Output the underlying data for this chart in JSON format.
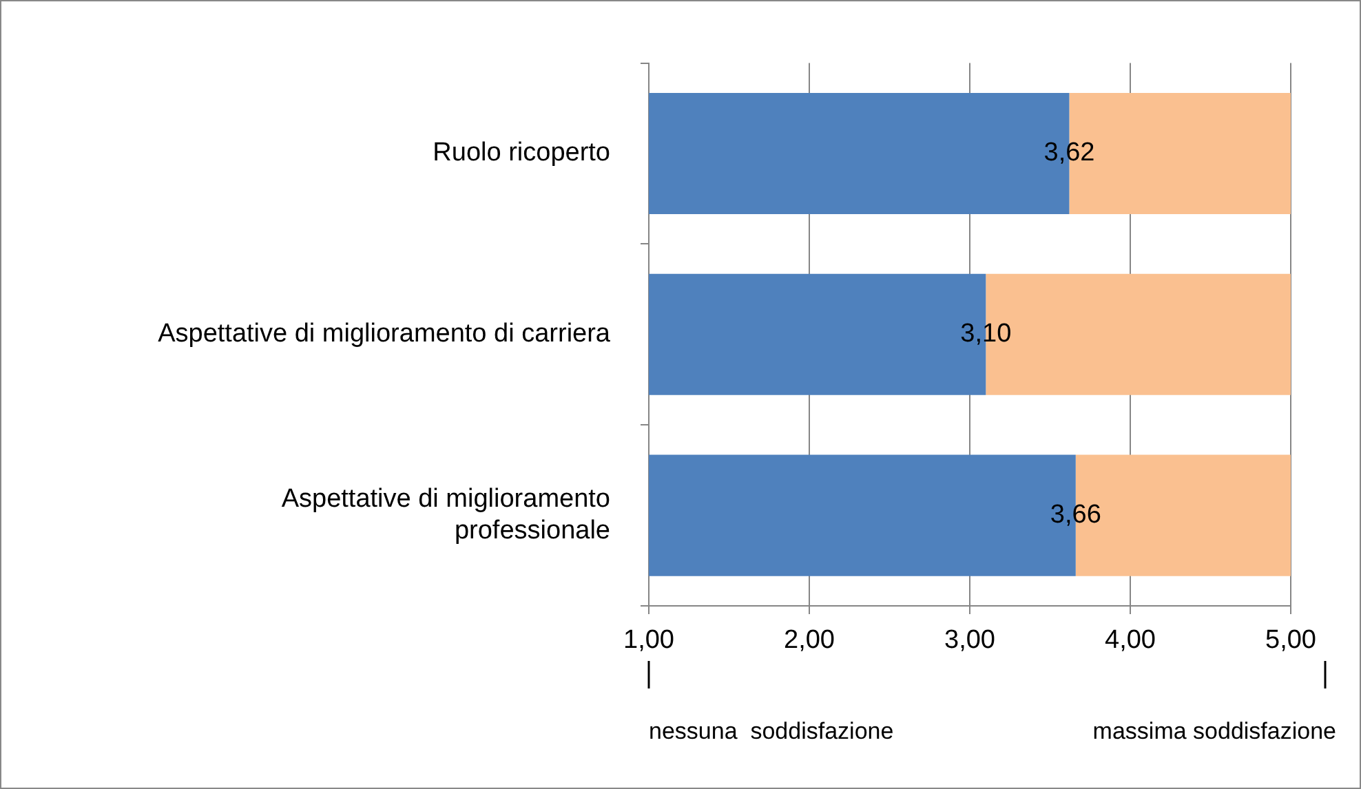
{
  "chart_data": {
    "type": "bar",
    "orientation": "horizontal",
    "stacked": true,
    "categories": [
      "Ruolo ricoperto",
      "Aspettative di miglioramento di carriera",
      "Aspettative di miglioramento professionale"
    ],
    "series": [
      {
        "color": "#4f81bd",
        "values": [
          3.62,
          3.1,
          3.66
        ],
        "value_labels": [
          "3,62",
          "3,10",
          "3,66"
        ]
      },
      {
        "color": "#fac090",
        "values": [
          1.38,
          1.9,
          1.34
        ]
      }
    ],
    "xlim": [
      1,
      5
    ],
    "xticks": [
      {
        "value": 1,
        "label": "1,00"
      },
      {
        "value": 2,
        "label": "2,00"
      },
      {
        "value": 3,
        "label": "3,00"
      },
      {
        "value": 4,
        "label": "4,00"
      },
      {
        "value": 5,
        "label": "5,00"
      }
    ],
    "grid": "x",
    "legend": false,
    "annotations": [
      "nessuna  soddisfazione",
      "massima soddisfazione"
    ]
  }
}
